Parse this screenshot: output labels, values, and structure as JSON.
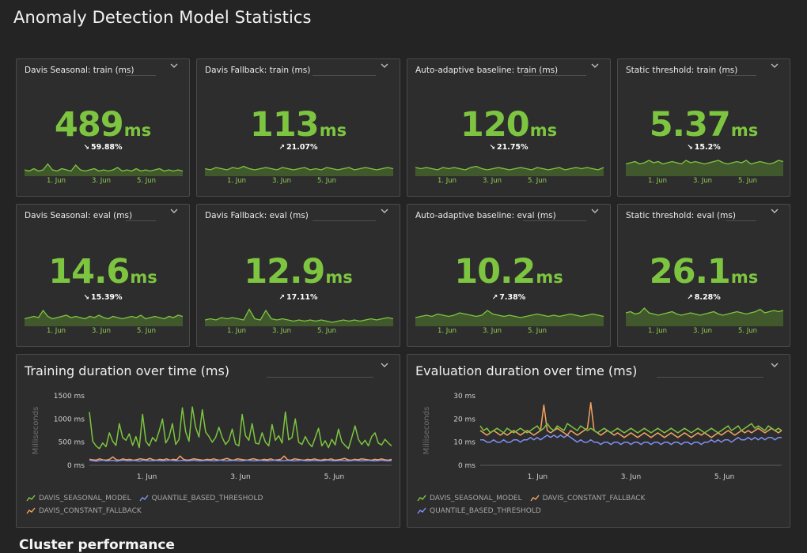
{
  "page": {
    "title": "Anomaly Detection Model Statistics"
  },
  "tiles": [
    {
      "title": "Davis Seasonal: train (ms)",
      "value": "489",
      "unit": "ms",
      "delta": "59.88%",
      "trend": "down",
      "dates": [
        "1. Jun",
        "3. Jun",
        "5. Jun"
      ]
    },
    {
      "title": "Davis Fallback: train (ms)",
      "value": "113",
      "unit": "ms",
      "delta": "21.07%",
      "trend": "up",
      "dates": [
        "1. Jun",
        "3. Jun",
        "5. Jun"
      ]
    },
    {
      "title": "Auto-adaptive baseline: train (ms)",
      "value": "120",
      "unit": "ms",
      "delta": "21.75%",
      "trend": "down",
      "dates": [
        "1. Jun",
        "3. Jun",
        "5. Jun"
      ]
    },
    {
      "title": "Static threshold: train (ms)",
      "value": "5.37",
      "unit": "ms",
      "delta": "15.2%",
      "trend": "down",
      "dates": [
        "1. Jun",
        "3. Jun",
        "5. Jun"
      ]
    },
    {
      "title": "Davis Seasonal: eval (ms)",
      "value": "14.6",
      "unit": "ms",
      "delta": "15.39%",
      "trend": "down",
      "dates": [
        "1. Jun",
        "3. Jun",
        "5. Jun"
      ]
    },
    {
      "title": "Davis Fallback: eval (ms)",
      "value": "12.9",
      "unit": "ms",
      "delta": "17.11%",
      "trend": "up",
      "dates": [
        "1. Jun",
        "3. Jun",
        "5. Jun"
      ]
    },
    {
      "title": "Auto-adaptive baseline: eval (ms)",
      "value": "10.2",
      "unit": "ms",
      "delta": "7.38%",
      "trend": "up",
      "dates": [
        "1. Jun",
        "3. Jun",
        "5. Jun"
      ]
    },
    {
      "title": "Static threshold: eval (ms)",
      "value": "26.1",
      "unit": "ms",
      "delta": "8.28%",
      "trend": "up",
      "dates": [
        "1. Jun",
        "3. Jun",
        "5. Jun"
      ]
    }
  ],
  "charts": [
    {
      "title": "Training duration over time (ms)",
      "legend": [
        "DAVIS_SEASONAL_MODEL",
        "QUANTILE_BASED_THRESHOLD",
        "DAVIS_CONSTANT_FALLBACK"
      ]
    },
    {
      "title": "Evaluation duration over time (ms)",
      "legend": [
        "DAVIS_SEASONAL_MODEL",
        "DAVIS_CONSTANT_FALLBACK",
        "QUANTILE_BASED_THRESHOLD"
      ]
    }
  ],
  "chart_data": [
    {
      "type": "line",
      "title": "Training duration over time (ms)",
      "ylabel": "Milliseconds",
      "ylim": [
        0,
        1500
      ],
      "yticks": [
        "0 ms",
        "500 ms",
        "1000 ms",
        "1500 ms"
      ],
      "xticks": [
        "1. Jun",
        "3. Jun",
        "5. Jun"
      ],
      "series": [
        {
          "name": "DAVIS_SEASONAL_MODEL",
          "color": "#7dc540",
          "values": [
            1150,
            520,
            420,
            360,
            480,
            400,
            700,
            520,
            430,
            900,
            600,
            540,
            680,
            430,
            620,
            380,
            1100,
            520,
            420,
            600,
            520,
            740,
            1000,
            480,
            610,
            900,
            450,
            560,
            1240,
            720,
            520,
            1260,
            820,
            610,
            1200,
            720,
            620,
            500,
            600,
            820,
            600,
            450,
            540,
            780,
            460,
            420,
            1100,
            640,
            540,
            900,
            480,
            460,
            700,
            500,
            420,
            880,
            540,
            640,
            480,
            1150,
            550,
            600,
            1000,
            500,
            450,
            620,
            480,
            400,
            600,
            800,
            420,
            530,
            380,
            560,
            440,
            780,
            510,
            430,
            360,
            600,
            850,
            560,
            450,
            540,
            420,
            620,
            700,
            480,
            440,
            560,
            480,
            420
          ]
        },
        {
          "name": "QUANTILE_BASED_THRESHOLD",
          "color": "#8090f5",
          "values": [
            110,
            100,
            90,
            100,
            110,
            95,
            100,
            105,
            90,
            100,
            110,
            100,
            95,
            105,
            100,
            90,
            110,
            100,
            95,
            100,
            105,
            100,
            95,
            100,
            110,
            100,
            95,
            100,
            105,
            95,
            100,
            110,
            100,
            95,
            100,
            105,
            100,
            95,
            100,
            110,
            100,
            95,
            100,
            105,
            100,
            95,
            100,
            110,
            100,
            95,
            100,
            105,
            100,
            95,
            100,
            110,
            100,
            95,
            100,
            105,
            100,
            95,
            100,
            110,
            100,
            95,
            100,
            105,
            100,
            95,
            100,
            110,
            100,
            95,
            100,
            105,
            100,
            95,
            100,
            110,
            100,
            95,
            100,
            105,
            100,
            95,
            100,
            110,
            100,
            95,
            100
          ]
        },
        {
          "name": "DAVIS_CONSTANT_FALLBACK",
          "color": "#f4a261",
          "values": [
            130,
            120,
            110,
            140,
            120,
            110,
            130,
            180,
            120,
            110,
            140,
            120,
            130,
            110,
            120,
            140,
            130,
            120,
            150,
            120,
            110,
            130,
            120,
            140,
            110,
            130,
            120,
            200,
            130,
            110,
            120,
            140,
            130,
            120,
            110,
            130,
            120,
            140,
            120,
            110,
            130,
            150,
            120,
            110,
            140,
            130,
            120,
            110,
            130,
            140,
            120,
            110,
            130,
            120,
            140,
            110,
            120,
            130,
            200,
            120,
            110,
            140,
            130,
            120,
            110,
            130,
            120,
            140,
            120,
            110,
            130,
            120,
            140,
            110,
            120,
            130,
            150,
            120,
            110,
            130,
            120,
            140,
            130,
            120,
            110,
            130,
            120,
            140,
            120,
            110,
            130
          ]
        }
      ]
    },
    {
      "type": "line",
      "title": "Evaluation duration over time (ms)",
      "ylabel": "Milliseconds",
      "ylim": [
        0,
        30
      ],
      "yticks": [
        "0 ms",
        "10 ms",
        "20 ms",
        "30 ms"
      ],
      "xticks": [
        "1. Jun",
        "3. Jun",
        "5. Jun"
      ],
      "series": [
        {
          "name": "DAVIS_SEASONAL_MODEL",
          "color": "#7dc540",
          "values": [
            17,
            15,
            16,
            14,
            15,
            16,
            15,
            14,
            16,
            15,
            14,
            15,
            16,
            15,
            14,
            15,
            16,
            17,
            15,
            16,
            18,
            16,
            15,
            17,
            16,
            15,
            18,
            17,
            16,
            15,
            17,
            16,
            15,
            16,
            15,
            14,
            15,
            16,
            15,
            14,
            15,
            16,
            15,
            14,
            15,
            16,
            15,
            14,
            15,
            16,
            15,
            14,
            15,
            16,
            15,
            14,
            15,
            16,
            15,
            14,
            15,
            16,
            15,
            14,
            15,
            16,
            15,
            14,
            15,
            16,
            15,
            14,
            15,
            16,
            17,
            15,
            16,
            17,
            15,
            16,
            17,
            18,
            16,
            17,
            16,
            15,
            17,
            16,
            15,
            16,
            15
          ]
        },
        {
          "name": "DAVIS_CONSTANT_FALLBACK",
          "color": "#f4a261",
          "values": [
            15,
            14,
            13,
            14,
            15,
            14,
            13,
            14,
            13,
            14,
            15,
            14,
            13,
            14,
            15,
            14,
            13,
            14,
            15,
            26,
            15,
            14,
            15,
            16,
            15,
            14,
            13,
            15,
            14,
            13,
            14,
            15,
            16,
            27,
            15,
            14,
            13,
            14,
            15,
            14,
            13,
            14,
            13,
            12,
            13,
            14,
            13,
            12,
            13,
            14,
            13,
            12,
            13,
            14,
            13,
            12,
            13,
            14,
            13,
            12,
            13,
            14,
            13,
            12,
            13,
            14,
            13,
            14,
            13,
            12,
            13,
            14,
            13,
            14,
            15,
            14,
            13,
            14,
            15,
            14,
            15,
            14,
            15,
            16,
            15,
            14,
            15,
            16,
            15,
            14,
            15
          ]
        },
        {
          "name": "QUANTILE_BASED_THRESHOLD",
          "color": "#8090f5",
          "values": [
            11,
            11,
            10,
            10,
            11,
            10,
            10,
            11,
            10,
            10,
            11,
            11,
            10,
            11,
            11,
            12,
            11,
            12,
            11,
            12,
            13,
            12,
            13,
            12,
            13,
            12,
            13,
            12,
            11,
            10,
            11,
            10,
            10,
            11,
            10,
            10,
            9,
            10,
            10,
            9,
            10,
            10,
            9,
            10,
            10,
            9,
            10,
            10,
            9,
            10,
            10,
            9,
            10,
            10,
            9,
            10,
            10,
            9,
            10,
            10,
            9,
            10,
            10,
            9,
            10,
            10,
            9,
            10,
            10,
            11,
            10,
            11,
            10,
            11,
            11,
            10,
            11,
            12,
            11,
            11,
            12,
            11,
            12,
            11,
            12,
            11,
            12,
            12,
            11,
            12,
            12
          ]
        }
      ]
    }
  ],
  "footer": {
    "section_title": "Cluster performance"
  }
}
